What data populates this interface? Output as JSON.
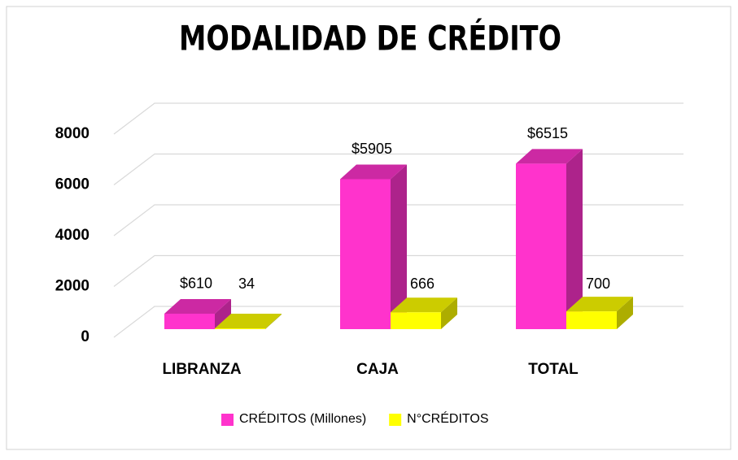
{
  "chart_data": {
    "type": "bar3d",
    "title": "MODALIDAD DE CRÉDITO",
    "categories": [
      "LIBRANZA",
      "CAJA",
      "TOTAL"
    ],
    "series": [
      {
        "name": "CRÉDITOS (Millones)",
        "color": "#ff33cc",
        "values": [
          610,
          5905,
          6515
        ],
        "value_labels": [
          "$610",
          "$5905",
          "$6515"
        ]
      },
      {
        "name": "N°CRÉDITOS",
        "color": "#ffff00",
        "values": [
          34,
          666,
          700
        ]
      }
    ],
    "ylim": [
      0,
      8000
    ],
    "yticks": [
      0,
      2000,
      4000,
      6000,
      8000
    ],
    "grid": true,
    "legend": "bottom"
  }
}
